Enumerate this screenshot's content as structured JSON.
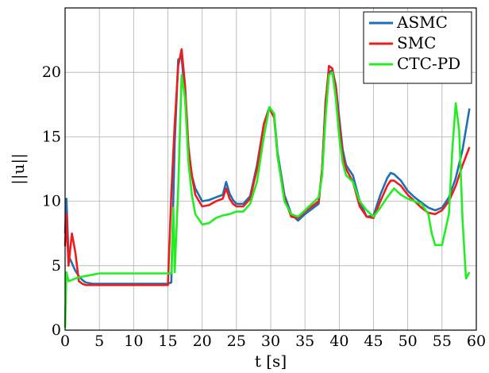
{
  "chart_data": {
    "type": "line",
    "title": "",
    "xlabel": "t [s]",
    "ylabel": "||u||",
    "xlim": [
      0,
      60
    ],
    "ylim": [
      0,
      25
    ],
    "xticks": [
      0,
      5,
      10,
      15,
      20,
      25,
      30,
      35,
      40,
      45,
      50,
      55,
      60
    ],
    "yticks": [
      0,
      5,
      10,
      15,
      20
    ],
    "grid": true,
    "legend_position": "top-right",
    "series": [
      {
        "name": "ASMC",
        "color": "#1f6fb5",
        "x": [
          0,
          0.2,
          0.5,
          1.0,
          1.5,
          2.0,
          2.5,
          3,
          4,
          5,
          8,
          10,
          12,
          15,
          15.5,
          16,
          16.5,
          17,
          17.5,
          18,
          18.5,
          19,
          20,
          21,
          22,
          23,
          23.5,
          24,
          24.5,
          25,
          26,
          27,
          28,
          29,
          29.8,
          30.5,
          31,
          32,
          33,
          34,
          35,
          36,
          37,
          37.5,
          38,
          38.5,
          39,
          39.5,
          40,
          40.5,
          41,
          42,
          43,
          44,
          45,
          46,
          47,
          47.5,
          48,
          49,
          50,
          51,
          52,
          53,
          54,
          55,
          56,
          57,
          58,
          59
        ],
        "y": [
          7.5,
          10.2,
          5.8,
          5.2,
          4.6,
          4.2,
          3.9,
          3.7,
          3.6,
          3.6,
          3.6,
          3.6,
          3.6,
          3.6,
          3.7,
          14.5,
          21.0,
          21.2,
          18.0,
          14.0,
          12.0,
          11.0,
          10.0,
          10.1,
          10.3,
          10.5,
          11.5,
          10.6,
          10.1,
          9.8,
          9.8,
          10.4,
          12.8,
          16.0,
          17.3,
          16.8,
          13.8,
          10.5,
          9.0,
          8.5,
          9.0,
          9.4,
          9.8,
          12.5,
          17.8,
          20.0,
          20.2,
          19.0,
          16.5,
          14.0,
          12.8,
          12.0,
          10.0,
          8.8,
          8.9,
          10.5,
          11.8,
          12.2,
          12.1,
          11.6,
          10.8,
          10.3,
          9.9,
          9.5,
          9.3,
          9.5,
          10.3,
          11.8,
          14.0,
          17.2
        ]
      },
      {
        "name": "SMC",
        "color": "#ee1c1c",
        "x": [
          0,
          0.2,
          0.5,
          1.0,
          1.5,
          2.0,
          2.5,
          3,
          4,
          5,
          8,
          10,
          12,
          15,
          15.5,
          16,
          16.5,
          17,
          17.5,
          18,
          18.5,
          19,
          20,
          21,
          22,
          23,
          23.5,
          24,
          24.5,
          25,
          26,
          27,
          28,
          29,
          29.8,
          30.5,
          31,
          32,
          33,
          34,
          35,
          36,
          37,
          37.5,
          38,
          38.5,
          39,
          39.5,
          40,
          40.5,
          41,
          42,
          43,
          44,
          45,
          46,
          47,
          47.5,
          48,
          49,
          50,
          51,
          52,
          53,
          54,
          55,
          56,
          57,
          58,
          59
        ],
        "y": [
          6.5,
          9.0,
          5.0,
          7.5,
          6.0,
          3.8,
          3.6,
          3.5,
          3.5,
          3.5,
          3.5,
          3.5,
          3.5,
          3.5,
          10.6,
          16.0,
          20.5,
          21.8,
          19.0,
          14.2,
          12.0,
          10.5,
          9.6,
          9.7,
          10.0,
          10.2,
          11.0,
          10.2,
          9.8,
          9.6,
          9.6,
          10.2,
          12.5,
          16.0,
          17.2,
          16.5,
          13.5,
          10.2,
          8.8,
          8.7,
          9.2,
          9.6,
          10.0,
          12.5,
          17.5,
          20.5,
          20.3,
          18.8,
          16.0,
          13.5,
          12.5,
          11.5,
          9.6,
          8.8,
          8.7,
          10.0,
          11.2,
          11.6,
          11.6,
          11.2,
          10.5,
          10.0,
          9.5,
          9.1,
          9.0,
          9.3,
          10.0,
          11.2,
          12.8,
          14.2
        ]
      },
      {
        "name": "CTC-PD",
        "color": "#22ee22",
        "x": [
          0,
          0.2,
          0.5,
          1,
          2,
          3,
          4,
          5,
          8,
          10,
          12,
          15,
          15.5,
          15.8,
          16,
          16.5,
          17,
          17.5,
          18,
          18.5,
          19,
          20,
          21,
          22,
          23,
          24,
          25,
          26,
          27,
          28,
          29,
          29.8,
          30.5,
          31,
          32,
          33,
          34,
          35,
          36,
          37,
          37.5,
          38,
          38.5,
          39,
          39.5,
          40,
          40.5,
          41,
          42,
          43,
          44,
          45,
          46,
          47,
          48,
          49,
          50,
          51,
          52,
          53,
          53.5,
          54,
          55,
          56,
          56.5,
          57,
          57.5,
          58,
          58.5,
          59
        ],
        "y": [
          0.2,
          4.5,
          3.8,
          3.9,
          4.1,
          4.2,
          4.3,
          4.4,
          4.4,
          4.4,
          4.4,
          4.4,
          4.4,
          9.5,
          4.5,
          11.0,
          19.8,
          18.0,
          13.0,
          10.5,
          9.0,
          8.2,
          8.3,
          8.7,
          8.9,
          9.0,
          9.2,
          9.2,
          9.8,
          11.5,
          15.0,
          17.3,
          16.8,
          13.5,
          10.0,
          9.0,
          8.8,
          9.3,
          9.8,
          10.3,
          12.0,
          16.5,
          19.8,
          20.0,
          18.0,
          15.0,
          13.0,
          12.0,
          11.5,
          10.0,
          9.3,
          8.8,
          9.5,
          10.3,
          11.0,
          10.5,
          10.2,
          10.0,
          9.8,
          9.0,
          7.5,
          6.6,
          6.6,
          9.0,
          14.0,
          17.6,
          15.5,
          8.5,
          4.0,
          4.5
        ]
      }
    ]
  }
}
